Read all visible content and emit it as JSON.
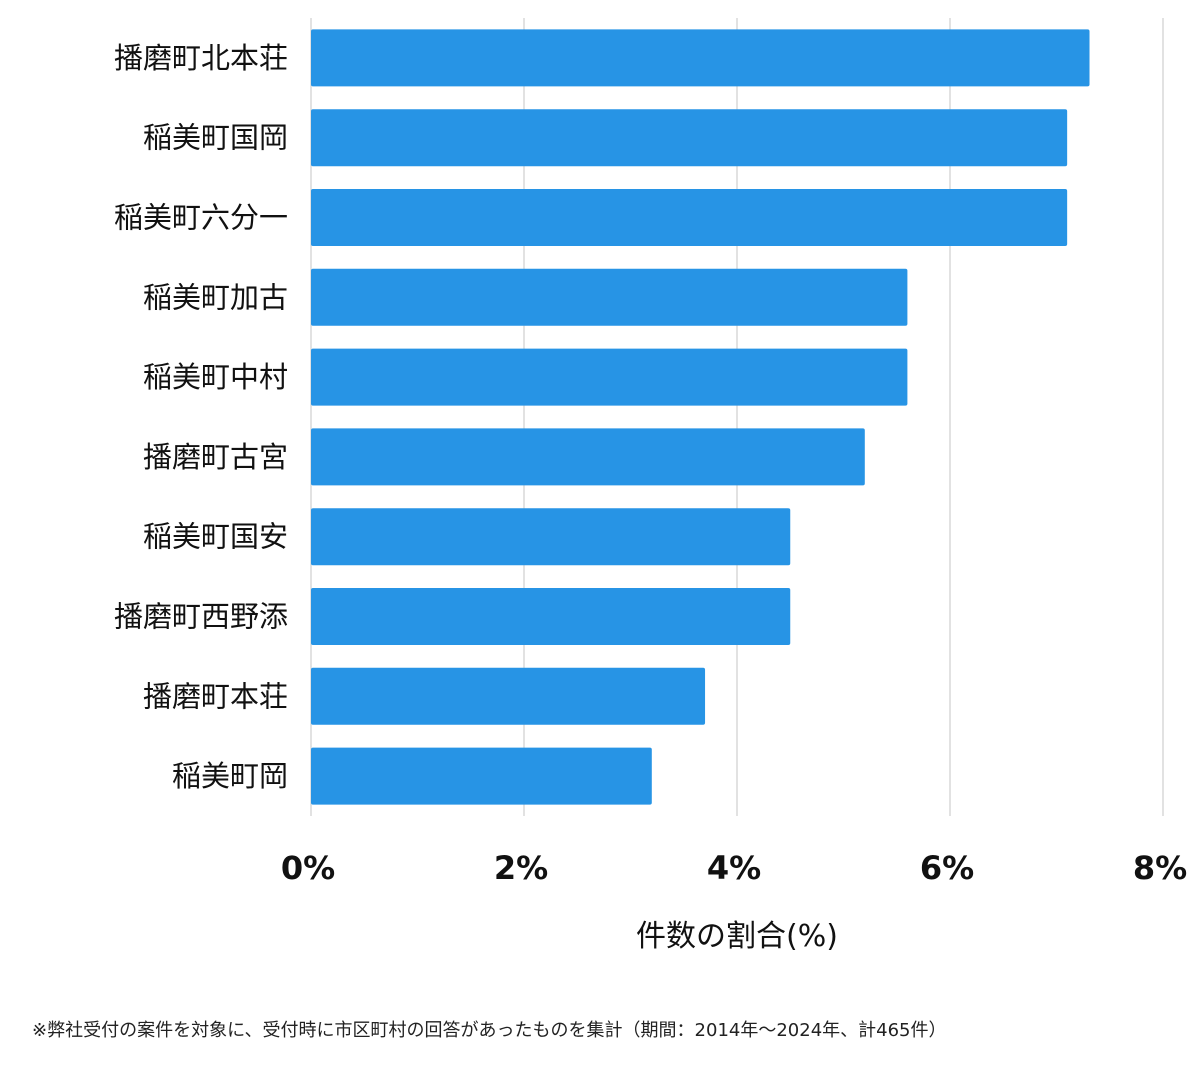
{
  "chart_data": {
    "type": "bar",
    "orientation": "horizontal",
    "categories": [
      "播磨町北本荘",
      "稲美町国岡",
      "稲美町六分一",
      "稲美町加古",
      "稲美町中村",
      "播磨町古宮",
      "稲美町国安",
      "播磨町西野添",
      "播磨町本荘",
      "稲美町岡"
    ],
    "values": [
      7.31,
      7.1,
      7.1,
      5.6,
      5.6,
      5.2,
      4.5,
      4.5,
      3.7,
      3.2
    ],
    "xlim": [
      0,
      8
    ],
    "xticks": [
      0,
      2,
      4,
      6,
      8
    ],
    "xtick_labels": [
      "0%",
      "2%",
      "4%",
      "6%",
      "8%"
    ],
    "xlabel": "件数の割合(%)",
    "ylabel": "",
    "title": "",
    "grid": true,
    "bar_color": "#2794e5"
  },
  "footnote": "※弊社受付の案件を対象に、受付時に市区町村の回答があったものを集計（期間：2014年～2024年、計465件）"
}
